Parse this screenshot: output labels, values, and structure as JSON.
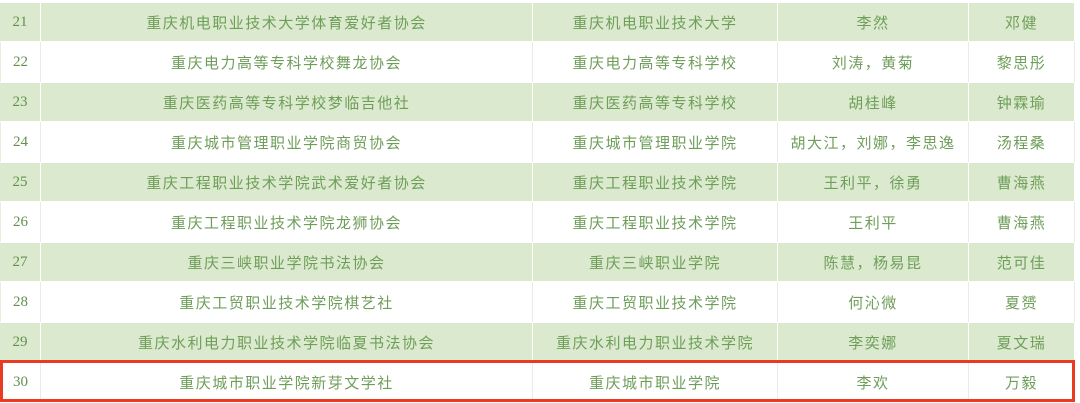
{
  "colors": {
    "row-green": "#dbe9ce",
    "row-white": "#ffffff",
    "text-green": "#6f9e5a",
    "num-green": "#63914f",
    "divider-white-row": "#e9eee4",
    "divider-green-row": "#ffffff",
    "highlight-red": "#e83b22"
  },
  "table": {
    "highlighted_row_number": "30",
    "rows": [
      {
        "num": "21",
        "club": "重庆机电职业技术大学体育爱好者协会",
        "school": "重庆机电职业技术大学",
        "advisors": "李然",
        "leader": "邓健"
      },
      {
        "num": "22",
        "club": "重庆电力高等专科学校舞龙协会",
        "school": "重庆电力高等专科学校",
        "advisors": "刘涛，黄菊",
        "leader": "黎思彤"
      },
      {
        "num": "23",
        "club": "重庆医药高等专科学校梦临吉他社",
        "school": "重庆医药高等专科学校",
        "advisors": "胡桂峰",
        "leader": "钟霖瑜"
      },
      {
        "num": "24",
        "club": "重庆城市管理职业学院商贸协会",
        "school": "重庆城市管理职业学院",
        "advisors": "胡大江，刘娜，李思逸",
        "leader": "汤程桑"
      },
      {
        "num": "25",
        "club": "重庆工程职业技术学院武术爱好者协会",
        "school": "重庆工程职业技术学院",
        "advisors": "王利平，徐勇",
        "leader": "曹海燕"
      },
      {
        "num": "26",
        "club": "重庆工程职业技术学院龙狮协会",
        "school": "重庆工程职业技术学院",
        "advisors": "王利平",
        "leader": "曹海燕"
      },
      {
        "num": "27",
        "club": "重庆三峡职业学院书法协会",
        "school": "重庆三峡职业学院",
        "advisors": "陈慧，杨易昆",
        "leader": "范可佳"
      },
      {
        "num": "28",
        "club": "重庆工贸职业技术学院棋艺社",
        "school": "重庆工贸职业技术学院",
        "advisors": "何沁微",
        "leader": "夏赟"
      },
      {
        "num": "29",
        "club": "重庆水利电力职业技术学院临夏书法协会",
        "school": "重庆水利电力职业技术学院",
        "advisors": "李奕娜",
        "leader": "夏文瑞"
      },
      {
        "num": "30",
        "club": "重庆城市职业学院新芽文学社",
        "school": "重庆城市职业学院",
        "advisors": "李欢",
        "leader": "万毅"
      }
    ]
  }
}
